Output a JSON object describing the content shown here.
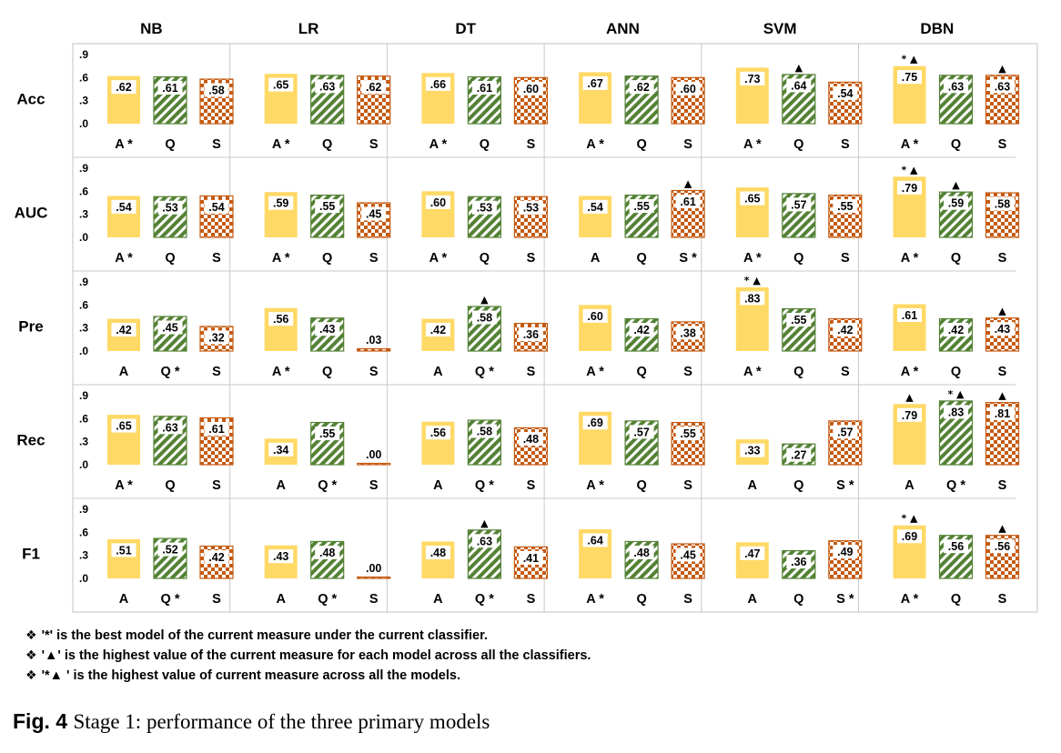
{
  "chart_data": {
    "type": "bar",
    "classifiers": [
      "NB",
      "LR",
      "DT",
      "ANN",
      "SVM",
      "DBN"
    ],
    "measures": [
      "Acc",
      "AUC",
      "Pre",
      "Rec",
      "F1"
    ],
    "y_ticks": [
      ".9",
      ".6",
      ".3",
      ".0"
    ],
    "ylim": [
      0,
      0.9
    ],
    "series_styles": [
      {
        "key": "A",
        "color": "#FFD966",
        "pattern": "solid"
      },
      {
        "key": "Q",
        "color": "#548235",
        "pattern": "diagonal-stripes"
      },
      {
        "key": "S",
        "color": "#C55A11",
        "pattern": "checkerboard"
      }
    ],
    "panels": [
      {
        "measure": "Acc",
        "classifier": "NB",
        "bars": [
          {
            "label": "A*",
            "value": 0.62,
            "text": ".62",
            "mark": ""
          },
          {
            "label": "Q",
            "value": 0.61,
            "text": ".61",
            "mark": ""
          },
          {
            "label": "S",
            "value": 0.58,
            "text": ".58",
            "mark": ""
          }
        ]
      },
      {
        "measure": "Acc",
        "classifier": "LR",
        "bars": [
          {
            "label": "A*",
            "value": 0.65,
            "text": ".65",
            "mark": ""
          },
          {
            "label": "Q",
            "value": 0.63,
            "text": ".63",
            "mark": ""
          },
          {
            "label": "S",
            "value": 0.62,
            "text": ".62",
            "mark": ""
          }
        ]
      },
      {
        "measure": "Acc",
        "classifier": "DT",
        "bars": [
          {
            "label": "A*",
            "value": 0.66,
            "text": ".66",
            "mark": ""
          },
          {
            "label": "Q",
            "value": 0.61,
            "text": ".61",
            "mark": ""
          },
          {
            "label": "S",
            "value": 0.6,
            "text": ".60",
            "mark": ""
          }
        ]
      },
      {
        "measure": "Acc",
        "classifier": "ANN",
        "bars": [
          {
            "label": "A*",
            "value": 0.67,
            "text": ".67",
            "mark": ""
          },
          {
            "label": "Q",
            "value": 0.62,
            "text": ".62",
            "mark": ""
          },
          {
            "label": "S",
            "value": 0.6,
            "text": ".60",
            "mark": ""
          }
        ]
      },
      {
        "measure": "Acc",
        "classifier": "SVM",
        "bars": [
          {
            "label": "A*",
            "value": 0.73,
            "text": ".73",
            "mark": ""
          },
          {
            "label": "Q",
            "value": 0.64,
            "text": ".64",
            "mark": "▲"
          },
          {
            "label": "S",
            "value": 0.54,
            "text": ".54",
            "mark": ""
          }
        ]
      },
      {
        "measure": "Acc",
        "classifier": "DBN",
        "bars": [
          {
            "label": "A*",
            "value": 0.75,
            "text": ".75",
            "mark": "* ▲"
          },
          {
            "label": "Q",
            "value": 0.63,
            "text": ".63",
            "mark": ""
          },
          {
            "label": "S",
            "value": 0.63,
            "text": ".63",
            "mark": "▲"
          }
        ]
      },
      {
        "measure": "AUC",
        "classifier": "NB",
        "bars": [
          {
            "label": "A*",
            "value": 0.54,
            "text": ".54",
            "mark": ""
          },
          {
            "label": "Q",
            "value": 0.53,
            "text": ".53",
            "mark": ""
          },
          {
            "label": "S",
            "value": 0.54,
            "text": ".54",
            "mark": ""
          }
        ]
      },
      {
        "measure": "AUC",
        "classifier": "LR",
        "bars": [
          {
            "label": "A*",
            "value": 0.59,
            "text": ".59",
            "mark": ""
          },
          {
            "label": "Q",
            "value": 0.55,
            "text": ".55",
            "mark": ""
          },
          {
            "label": "S",
            "value": 0.45,
            "text": ".45",
            "mark": ""
          }
        ]
      },
      {
        "measure": "AUC",
        "classifier": "DT",
        "bars": [
          {
            "label": "A*",
            "value": 0.6,
            "text": ".60",
            "mark": ""
          },
          {
            "label": "Q",
            "value": 0.53,
            "text": ".53",
            "mark": ""
          },
          {
            "label": "S",
            "value": 0.53,
            "text": ".53",
            "mark": ""
          }
        ]
      },
      {
        "measure": "AUC",
        "classifier": "ANN",
        "bars": [
          {
            "label": "A",
            "value": 0.54,
            "text": ".54",
            "mark": ""
          },
          {
            "label": "Q",
            "value": 0.55,
            "text": ".55",
            "mark": ""
          },
          {
            "label": "S*",
            "value": 0.61,
            "text": ".61",
            "mark": "▲"
          }
        ]
      },
      {
        "measure": "AUC",
        "classifier": "SVM",
        "bars": [
          {
            "label": "A*",
            "value": 0.65,
            "text": ".65",
            "mark": ""
          },
          {
            "label": "Q",
            "value": 0.57,
            "text": ".57",
            "mark": ""
          },
          {
            "label": "S",
            "value": 0.55,
            "text": ".55",
            "mark": ""
          }
        ]
      },
      {
        "measure": "AUC",
        "classifier": "DBN",
        "bars": [
          {
            "label": "A*",
            "value": 0.79,
            "text": ".79",
            "mark": "* ▲"
          },
          {
            "label": "Q",
            "value": 0.59,
            "text": ".59",
            "mark": "▲"
          },
          {
            "label": "S",
            "value": 0.58,
            "text": ".58",
            "mark": ""
          }
        ]
      },
      {
        "measure": "Pre",
        "classifier": "NB",
        "bars": [
          {
            "label": "A",
            "value": 0.42,
            "text": ".42",
            "mark": ""
          },
          {
            "label": "Q*",
            "value": 0.45,
            "text": ".45",
            "mark": ""
          },
          {
            "label": "S",
            "value": 0.32,
            "text": ".32",
            "mark": ""
          }
        ]
      },
      {
        "measure": "Pre",
        "classifier": "LR",
        "bars": [
          {
            "label": "A*",
            "value": 0.56,
            "text": ".56",
            "mark": ""
          },
          {
            "label": "Q",
            "value": 0.43,
            "text": ".43",
            "mark": ""
          },
          {
            "label": "S",
            "value": 0.03,
            "text": ".03",
            "mark": ""
          }
        ]
      },
      {
        "measure": "Pre",
        "classifier": "DT",
        "bars": [
          {
            "label": "A",
            "value": 0.42,
            "text": ".42",
            "mark": ""
          },
          {
            "label": "Q*",
            "value": 0.58,
            "text": ".58",
            "mark": "▲"
          },
          {
            "label": "S",
            "value": 0.36,
            "text": ".36",
            "mark": ""
          }
        ]
      },
      {
        "measure": "Pre",
        "classifier": "ANN",
        "bars": [
          {
            "label": "A*",
            "value": 0.6,
            "text": ".60",
            "mark": ""
          },
          {
            "label": "Q",
            "value": 0.42,
            "text": ".42",
            "mark": ""
          },
          {
            "label": "S",
            "value": 0.38,
            "text": ".38",
            "mark": ""
          }
        ]
      },
      {
        "measure": "Pre",
        "classifier": "SVM",
        "bars": [
          {
            "label": "A*",
            "value": 0.83,
            "text": ".83",
            "mark": "* ▲"
          },
          {
            "label": "Q",
            "value": 0.55,
            "text": ".55",
            "mark": ""
          },
          {
            "label": "S",
            "value": 0.42,
            "text": ".42",
            "mark": ""
          }
        ]
      },
      {
        "measure": "Pre",
        "classifier": "DBN",
        "bars": [
          {
            "label": "A*",
            "value": 0.61,
            "text": ".61",
            "mark": ""
          },
          {
            "label": "Q",
            "value": 0.42,
            "text": ".42",
            "mark": ""
          },
          {
            "label": "S",
            "value": 0.43,
            "text": ".43",
            "mark": "▲"
          }
        ]
      },
      {
        "measure": "Rec",
        "classifier": "NB",
        "bars": [
          {
            "label": "A*",
            "value": 0.65,
            "text": ".65",
            "mark": ""
          },
          {
            "label": "Q",
            "value": 0.63,
            "text": ".63",
            "mark": ""
          },
          {
            "label": "S",
            "value": 0.61,
            "text": ".61",
            "mark": ""
          }
        ]
      },
      {
        "measure": "Rec",
        "classifier": "LR",
        "bars": [
          {
            "label": "A",
            "value": 0.34,
            "text": ".34",
            "mark": ""
          },
          {
            "label": "Q*",
            "value": 0.55,
            "text": ".55",
            "mark": ""
          },
          {
            "label": "S",
            "value": 0.0,
            "text": ".00",
            "mark": ""
          }
        ]
      },
      {
        "measure": "Rec",
        "classifier": "DT",
        "bars": [
          {
            "label": "A",
            "value": 0.56,
            "text": ".56",
            "mark": ""
          },
          {
            "label": "Q*",
            "value": 0.58,
            "text": ".58",
            "mark": ""
          },
          {
            "label": "S",
            "value": 0.48,
            "text": ".48",
            "mark": ""
          }
        ]
      },
      {
        "measure": "Rec",
        "classifier": "ANN",
        "bars": [
          {
            "label": "A*",
            "value": 0.69,
            "text": ".69",
            "mark": ""
          },
          {
            "label": "Q",
            "value": 0.57,
            "text": ".57",
            "mark": ""
          },
          {
            "label": "S",
            "value": 0.55,
            "text": ".55",
            "mark": ""
          }
        ]
      },
      {
        "measure": "Rec",
        "classifier": "SVM",
        "bars": [
          {
            "label": "A",
            "value": 0.33,
            "text": ".33",
            "mark": ""
          },
          {
            "label": "Q",
            "value": 0.27,
            "text": ".27",
            "mark": ""
          },
          {
            "label": "S*",
            "value": 0.57,
            "text": ".57",
            "mark": ""
          }
        ]
      },
      {
        "measure": "Rec",
        "classifier": "DBN",
        "bars": [
          {
            "label": "A",
            "value": 0.79,
            "text": ".79",
            "mark": "▲"
          },
          {
            "label": "Q*",
            "value": 0.83,
            "text": ".83",
            "mark": "* ▲"
          },
          {
            "label": "S",
            "value": 0.81,
            "text": ".81",
            "mark": "▲"
          }
        ]
      },
      {
        "measure": "F1",
        "classifier": "NB",
        "bars": [
          {
            "label": "A",
            "value": 0.51,
            "text": ".51",
            "mark": ""
          },
          {
            "label": "Q*",
            "value": 0.52,
            "text": ".52",
            "mark": ""
          },
          {
            "label": "S",
            "value": 0.42,
            "text": ".42",
            "mark": ""
          }
        ]
      },
      {
        "measure": "F1",
        "classifier": "LR",
        "bars": [
          {
            "label": "A",
            "value": 0.43,
            "text": ".43",
            "mark": ""
          },
          {
            "label": "Q*",
            "value": 0.48,
            "text": ".48",
            "mark": ""
          },
          {
            "label": "S",
            "value": 0.0,
            "text": ".00",
            "mark": ""
          }
        ]
      },
      {
        "measure": "F1",
        "classifier": "DT",
        "bars": [
          {
            "label": "A",
            "value": 0.48,
            "text": ".48",
            "mark": ""
          },
          {
            "label": "Q*",
            "value": 0.63,
            "text": ".63",
            "mark": "▲"
          },
          {
            "label": "S",
            "value": 0.41,
            "text": ".41",
            "mark": ""
          }
        ]
      },
      {
        "measure": "F1",
        "classifier": "ANN",
        "bars": [
          {
            "label": "A*",
            "value": 0.64,
            "text": ".64",
            "mark": ""
          },
          {
            "label": "Q",
            "value": 0.48,
            "text": ".48",
            "mark": ""
          },
          {
            "label": "S",
            "value": 0.45,
            "text": ".45",
            "mark": ""
          }
        ]
      },
      {
        "measure": "F1",
        "classifier": "SVM",
        "bars": [
          {
            "label": "A",
            "value": 0.47,
            "text": ".47",
            "mark": ""
          },
          {
            "label": "Q",
            "value": 0.36,
            "text": ".36",
            "mark": ""
          },
          {
            "label": "S*",
            "value": 0.49,
            "text": ".49",
            "mark": ""
          }
        ]
      },
      {
        "measure": "F1",
        "classifier": "DBN",
        "bars": [
          {
            "label": "A*",
            "value": 0.69,
            "text": ".69",
            "mark": "* ▲"
          },
          {
            "label": "Q",
            "value": 0.56,
            "text": ".56",
            "mark": ""
          },
          {
            "label": "S",
            "value": 0.56,
            "text": ".56",
            "mark": "▲"
          }
        ]
      }
    ],
    "legend_notes": [
      "'*' is the best model of the current measure under the current classifier.",
      "'▲' is the highest value of the current measure for each model across all the classifiers.",
      "'*▲ ' is the highest value of current measure across all the models."
    ],
    "legend_bullet": "❖"
  },
  "caption": {
    "label": "Fig. 4",
    "text": "Stage 1: performance of the three primary models"
  }
}
